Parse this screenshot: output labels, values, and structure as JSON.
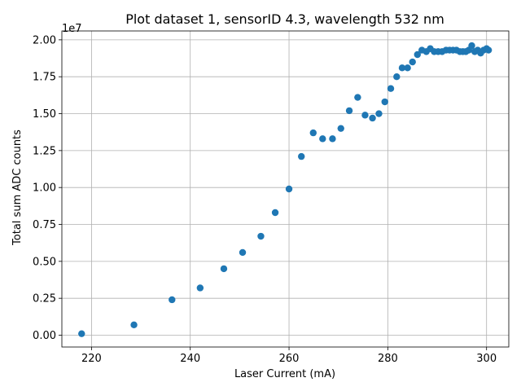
{
  "chart_data": {
    "type": "scatter",
    "title": "Plot dataset 1, sensorID 4.3, wavelength 532 nm",
    "xlabel": "Laser Current (mA)",
    "ylabel": "Total sum ADC counts",
    "y_offset_label": "1e7",
    "xlim": [
      214,
      304.5
    ],
    "ylim": [
      -0.08,
      2.06
    ],
    "y_scale_factor": 10000000,
    "x_ticks": [
      220,
      240,
      260,
      280,
      300
    ],
    "x_tick_labels": [
      "220",
      "240",
      "260",
      "280",
      "300"
    ],
    "y_ticks": [
      0.0,
      0.25,
      0.5,
      0.75,
      1.0,
      1.25,
      1.5,
      1.75,
      2.0
    ],
    "y_tick_labels": [
      "0.00",
      "0.25",
      "0.50",
      "0.75",
      "1.00",
      "1.25",
      "1.50",
      "1.75",
      "2.00"
    ],
    "grid": true,
    "marker_color": "#1f77b4",
    "series": [
      {
        "x": [
          218.0,
          228.6,
          236.3,
          242.0,
          246.8,
          250.6,
          254.3,
          257.2,
          260.0,
          262.5,
          264.9,
          266.8,
          268.8,
          270.5,
          272.2,
          273.9,
          275.4,
          276.9,
          278.2,
          279.4,
          280.6,
          281.8,
          282.9,
          284.0,
          285.0,
          286.0,
          286.9,
          287.8,
          288.6,
          289.4,
          290.2,
          291.0,
          291.8,
          292.5,
          293.2,
          293.9,
          294.6,
          295.2,
          295.8,
          296.4,
          297.0,
          297.6,
          298.2,
          298.8,
          299.4,
          300.0,
          300.4
        ],
        "y": [
          0.01,
          0.07,
          0.24,
          0.32,
          0.45,
          0.56,
          0.67,
          0.83,
          0.99,
          1.21,
          1.37,
          1.33,
          1.33,
          1.4,
          1.52,
          1.61,
          1.49,
          1.47,
          1.5,
          1.58,
          1.67,
          1.75,
          1.81,
          1.81,
          1.85,
          1.9,
          1.93,
          1.92,
          1.94,
          1.92,
          1.92,
          1.92,
          1.93,
          1.93,
          1.93,
          1.93,
          1.92,
          1.92,
          1.92,
          1.93,
          1.96,
          1.92,
          1.93,
          1.91,
          1.93,
          1.94,
          1.93
        ]
      }
    ]
  }
}
